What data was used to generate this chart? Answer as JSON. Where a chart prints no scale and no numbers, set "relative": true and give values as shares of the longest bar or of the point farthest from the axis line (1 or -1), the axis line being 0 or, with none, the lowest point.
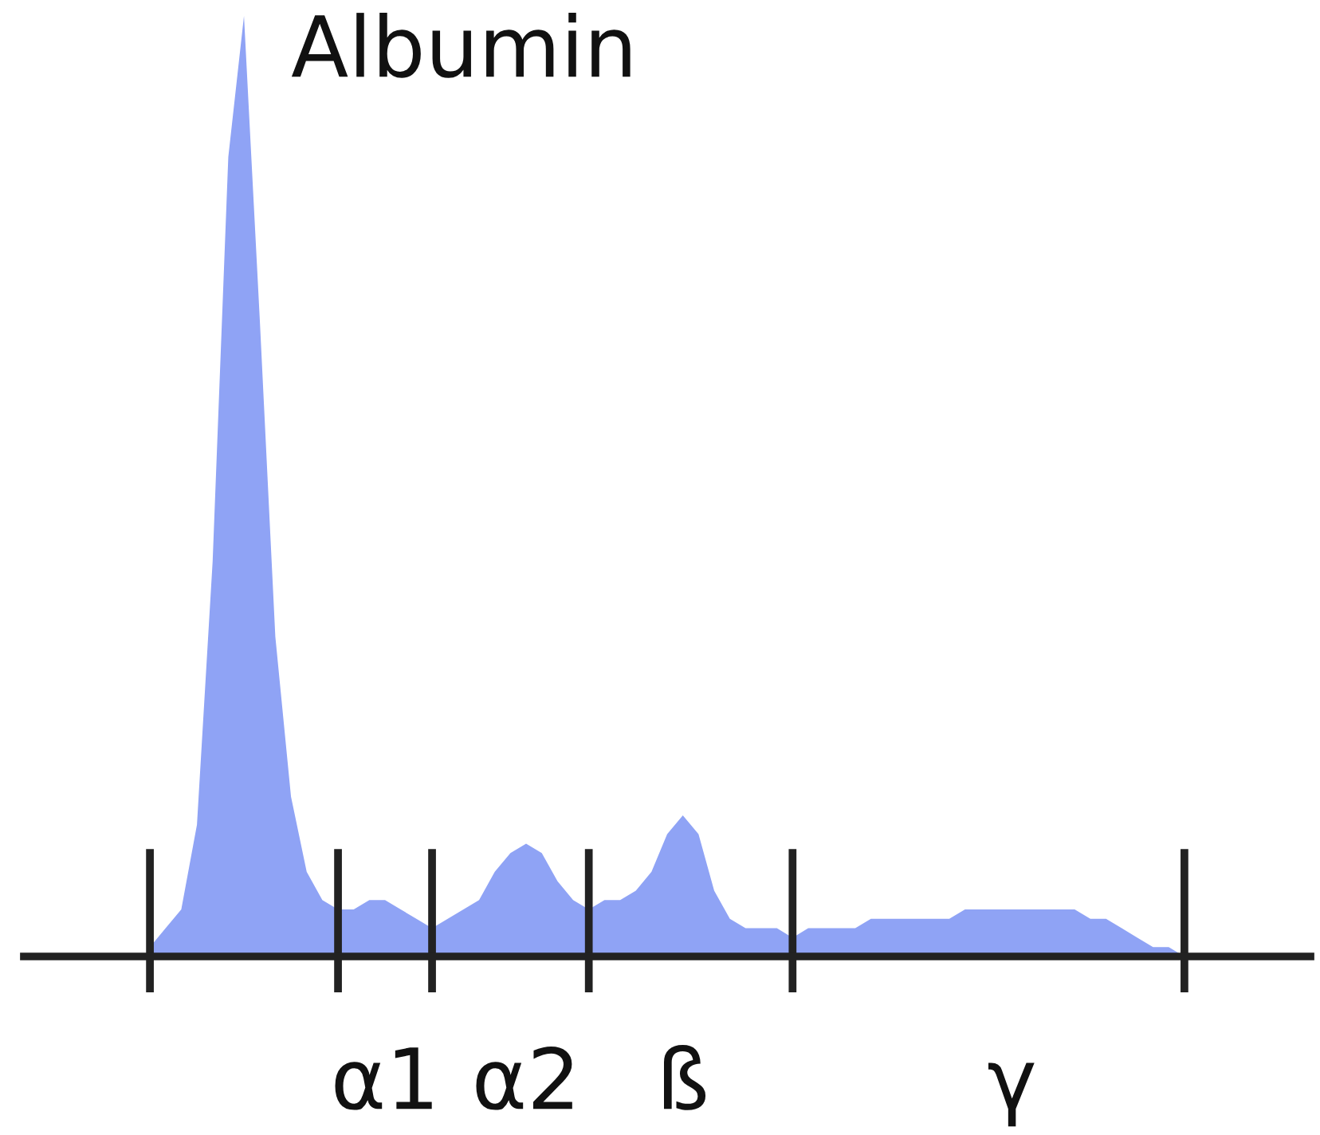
{
  "chart_data": {
    "type": "area",
    "relative": true,
    "color": "#8fa3f5",
    "categories": [
      null,
      null,
      null,
      null,
      null,
      null,
      null,
      null,
      null,
      null,
      null,
      null,
      null,
      null,
      null,
      "α1",
      null,
      null,
      null,
      null,
      null,
      null,
      null,
      null,
      "α2",
      null,
      null,
      null,
      null,
      null,
      null,
      null,
      null,
      null,
      "ß",
      null,
      null,
      null,
      null,
      null,
      null,
      null,
      null,
      null,
      null,
      null,
      null,
      null,
      null,
      null,
      null,
      null,
      null,
      null,
      null,
      "γ",
      null,
      null,
      null,
      null,
      null,
      null,
      null,
      null,
      null,
      null,
      null
    ],
    "values": [
      0.01,
      0.03,
      0.05,
      0.14,
      0.42,
      0.85,
      1.0,
      0.68,
      0.34,
      0.17,
      0.09,
      0.06,
      0.05,
      0.05,
      0.06,
      0.06,
      0.05,
      0.04,
      0.03,
      0.04,
      0.05,
      0.06,
      0.09,
      0.11,
      0.12,
      0.11,
      0.08,
      0.06,
      0.05,
      0.06,
      0.06,
      0.07,
      0.09,
      0.13,
      0.15,
      0.13,
      0.07,
      0.04,
      0.03,
      0.03,
      0.03,
      0.02,
      0.03,
      0.03,
      0.03,
      0.03,
      0.04,
      0.04,
      0.04,
      0.04,
      0.04,
      0.04,
      0.05,
      0.05,
      0.05,
      0.05,
      0.05,
      0.05,
      0.05,
      0.05,
      0.04,
      0.04,
      0.03,
      0.02,
      0.01,
      0.01,
      0
    ],
    "annotations": [
      "Albumin"
    ]
  }
}
